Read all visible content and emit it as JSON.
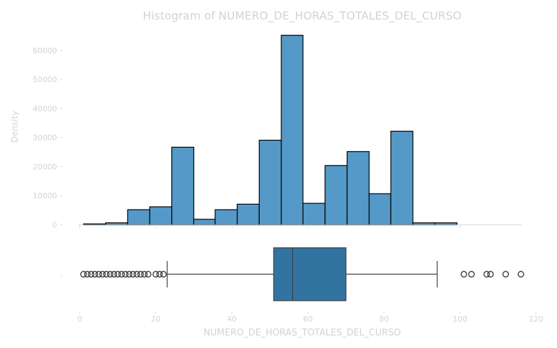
{
  "chart_data": [
    {
      "type": "histogram",
      "title": "Histogram of NUMERO_DE_HORAS_TOTALES_DEL_CURSO",
      "xlabel": "",
      "ylabel": "Density",
      "xlim": [
        0,
        120
      ],
      "ylim": [
        0,
        65000
      ],
      "yticks": [
        0,
        10000,
        20000,
        30000,
        40000,
        50000,
        60000
      ],
      "grid": false,
      "bar_color": "#5499c7",
      "edge_color": "#000000",
      "bins": [
        {
          "x0": 1.0,
          "x1": 6.8,
          "count": 300
        },
        {
          "x0": 6.8,
          "x1": 12.6,
          "count": 700
        },
        {
          "x0": 12.6,
          "x1": 18.4,
          "count": 5200
        },
        {
          "x0": 18.4,
          "x1": 24.2,
          "count": 6200
        },
        {
          "x0": 24.2,
          "x1": 30.0,
          "count": 26700
        },
        {
          "x0": 30.0,
          "x1": 35.6,
          "count": 1900
        },
        {
          "x0": 35.6,
          "x1": 41.4,
          "count": 5200
        },
        {
          "x0": 41.4,
          "x1": 47.2,
          "count": 7100
        },
        {
          "x0": 47.2,
          "x1": 53.0,
          "count": 29100
        },
        {
          "x0": 53.0,
          "x1": 58.7,
          "count": 65200
        },
        {
          "x0": 58.7,
          "x1": 64.5,
          "count": 7400
        },
        {
          "x0": 64.5,
          "x1": 70.3,
          "count": 20400
        },
        {
          "x0": 70.3,
          "x1": 76.1,
          "count": 25200
        },
        {
          "x0": 76.1,
          "x1": 81.8,
          "count": 10700
        },
        {
          "x0": 81.8,
          "x1": 87.6,
          "count": 32200
        },
        {
          "x0": 87.6,
          "x1": 93.4,
          "count": 700
        },
        {
          "x0": 93.4,
          "x1": 99.2,
          "count": 700
        }
      ]
    },
    {
      "type": "boxplot",
      "xlabel": "NUMERO_DE_HORAS_TOTALES_DEL_CURSO",
      "xlim": [
        0,
        120
      ],
      "xticks": [
        0,
        20,
        40,
        60,
        80,
        100,
        120
      ],
      "ytick_label": "-",
      "box_color": "#3274a1",
      "q1": 51,
      "median": 56,
      "q3": 70,
      "whisker_low": 23,
      "whisker_high": 94,
      "outliers": [
        1,
        2,
        3,
        4,
        5,
        6,
        7,
        8,
        9,
        10,
        11,
        12,
        13,
        14,
        15,
        16,
        17,
        18,
        20,
        21,
        22,
        101,
        103,
        107,
        108,
        112,
        116
      ]
    }
  ]
}
